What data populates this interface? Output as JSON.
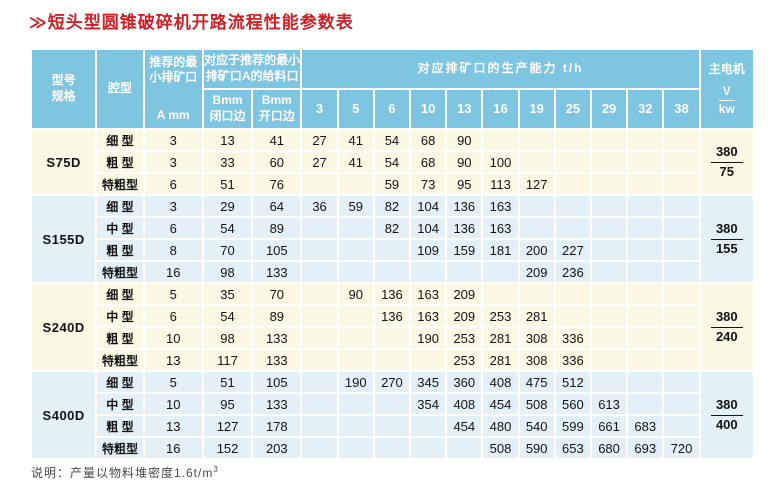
{
  "title": "≫短头型圆锥破碎机开路流程性能参数表",
  "note": {
    "text": "说明：产量以物料堆密度1.6t/m",
    "sup": "3"
  },
  "colors": {
    "header_bg": "#7ec5e2",
    "section_cream": "#fbf8e3",
    "section_blue": "#e3f0f8",
    "title_red": "#ce2127"
  },
  "table": {
    "header": {
      "model": "型号\n规格",
      "cavity": "腔型",
      "a_title": "推荐的最小排矿口",
      "a_unit": "A mm",
      "feed_group": "对应于推荐的最小排矿口A的给料口",
      "b_closed": "Bmm\n闭口边",
      "b_open": "Bmm\n开口边",
      "capacity_group": "对应排矿口的生产能力 t/h",
      "capacity_cols": [
        "3",
        "5",
        "6",
        "10",
        "13",
        "16",
        "19",
        "25",
        "29",
        "32",
        "38"
      ],
      "motor": "主电机",
      "motor_v": "V",
      "motor_kw": "kw"
    },
    "sections": [
      {
        "model": "S75D",
        "motor": {
          "num": "380",
          "den": "75"
        },
        "rows": [
          {
            "cavity": "细 型",
            "a": "3",
            "b_closed": "13",
            "b_open": "41",
            "caps": [
              "27",
              "41",
              "54",
              "68",
              "90",
              "",
              "",
              "",
              "",
              "",
              ""
            ]
          },
          {
            "cavity": "粗 型",
            "a": "3",
            "b_closed": "33",
            "b_open": "60",
            "caps": [
              "27",
              "41",
              "54",
              "68",
              "90",
              "100",
              "",
              "",
              "",
              "",
              ""
            ]
          },
          {
            "cavity": "特粗型",
            "a": "6",
            "b_closed": "51",
            "b_open": "76",
            "caps": [
              "",
              "",
              "59",
              "73",
              "95",
              "113",
              "127",
              "",
              "",
              "",
              ""
            ]
          }
        ]
      },
      {
        "model": "S155D",
        "motor": {
          "num": "380",
          "den": "155"
        },
        "rows": [
          {
            "cavity": "细 型",
            "a": "3",
            "b_closed": "29",
            "b_open": "64",
            "caps": [
              "36",
              "59",
              "82",
              "104",
              "136",
              "163",
              "",
              "",
              "",
              "",
              ""
            ]
          },
          {
            "cavity": "中 型",
            "a": "6",
            "b_closed": "54",
            "b_open": "89",
            "caps": [
              "",
              "",
              "82",
              "104",
              "136",
              "163",
              "",
              "",
              "",
              "",
              ""
            ]
          },
          {
            "cavity": "粗 型",
            "a": "8",
            "b_closed": "70",
            "b_open": "105",
            "caps": [
              "",
              "",
              "",
              "109",
              "159",
              "181",
              "200",
              "227",
              "",
              "",
              ""
            ]
          },
          {
            "cavity": "特粗型",
            "a": "16",
            "b_closed": "98",
            "b_open": "133",
            "caps": [
              "",
              "",
              "",
              "",
              "",
              "",
              "209",
              "236",
              "",
              "",
              ""
            ]
          }
        ]
      },
      {
        "model": "S240D",
        "motor": {
          "num": "380",
          "den": "240"
        },
        "rows": [
          {
            "cavity": "细 型",
            "a": "5",
            "b_closed": "35",
            "b_open": "70",
            "caps": [
              "",
              "90",
              "136",
              "163",
              "209",
              "",
              "",
              "",
              "",
              "",
              ""
            ]
          },
          {
            "cavity": "中 型",
            "a": "6",
            "b_closed": "54",
            "b_open": "89",
            "caps": [
              "",
              "",
              "136",
              "163",
              "209",
              "253",
              "281",
              "",
              "",
              "",
              ""
            ]
          },
          {
            "cavity": "粗 型",
            "a": "10",
            "b_closed": "98",
            "b_open": "133",
            "caps": [
              "",
              "",
              "",
              "190",
              "253",
              "281",
              "308",
              "336",
              "",
              "",
              ""
            ]
          },
          {
            "cavity": "特粗型",
            "a": "13",
            "b_closed": "117",
            "b_open": "133",
            "caps": [
              "",
              "",
              "",
              "",
              "253",
              "281",
              "308",
              "336",
              "",
              "",
              ""
            ]
          }
        ]
      },
      {
        "model": "S400D",
        "motor": {
          "num": "380",
          "den": "400"
        },
        "rows": [
          {
            "cavity": "细 型",
            "a": "5",
            "b_closed": "51",
            "b_open": "105",
            "caps": [
              "",
              "190",
              "270",
              "345",
              "360",
              "408",
              "475",
              "512",
              "",
              "",
              ""
            ]
          },
          {
            "cavity": "中 型",
            "a": "10",
            "b_closed": "95",
            "b_open": "133",
            "caps": [
              "",
              "",
              "",
              "354",
              "408",
              "454",
              "508",
              "560",
              "613",
              "",
              ""
            ]
          },
          {
            "cavity": "粗 型",
            "a": "13",
            "b_closed": "127",
            "b_open": "178",
            "caps": [
              "",
              "",
              "",
              "",
              "454",
              "480",
              "540",
              "599",
              "661",
              "683",
              ""
            ]
          },
          {
            "cavity": "特粗型",
            "a": "16",
            "b_closed": "152",
            "b_open": "203",
            "caps": [
              "",
              "",
              "",
              "",
              "",
              "508",
              "590",
              "653",
              "680",
              "693",
              "720"
            ]
          }
        ]
      }
    ]
  }
}
